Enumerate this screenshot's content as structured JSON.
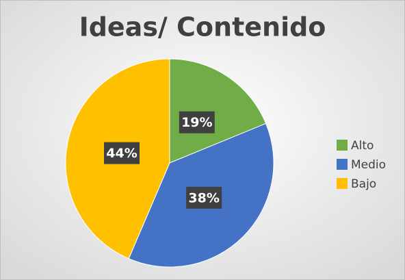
{
  "chart_data": {
    "type": "pie",
    "title": "Ideas/ Contenido",
    "categories": [
      "Alto",
      "Medio",
      "Bajo"
    ],
    "values": [
      19,
      38,
      44
    ],
    "value_labels": [
      "19%",
      "38%",
      "44%"
    ],
    "colors": [
      "#70ad47",
      "#4472c4",
      "#ffc000"
    ],
    "legend": "right"
  }
}
